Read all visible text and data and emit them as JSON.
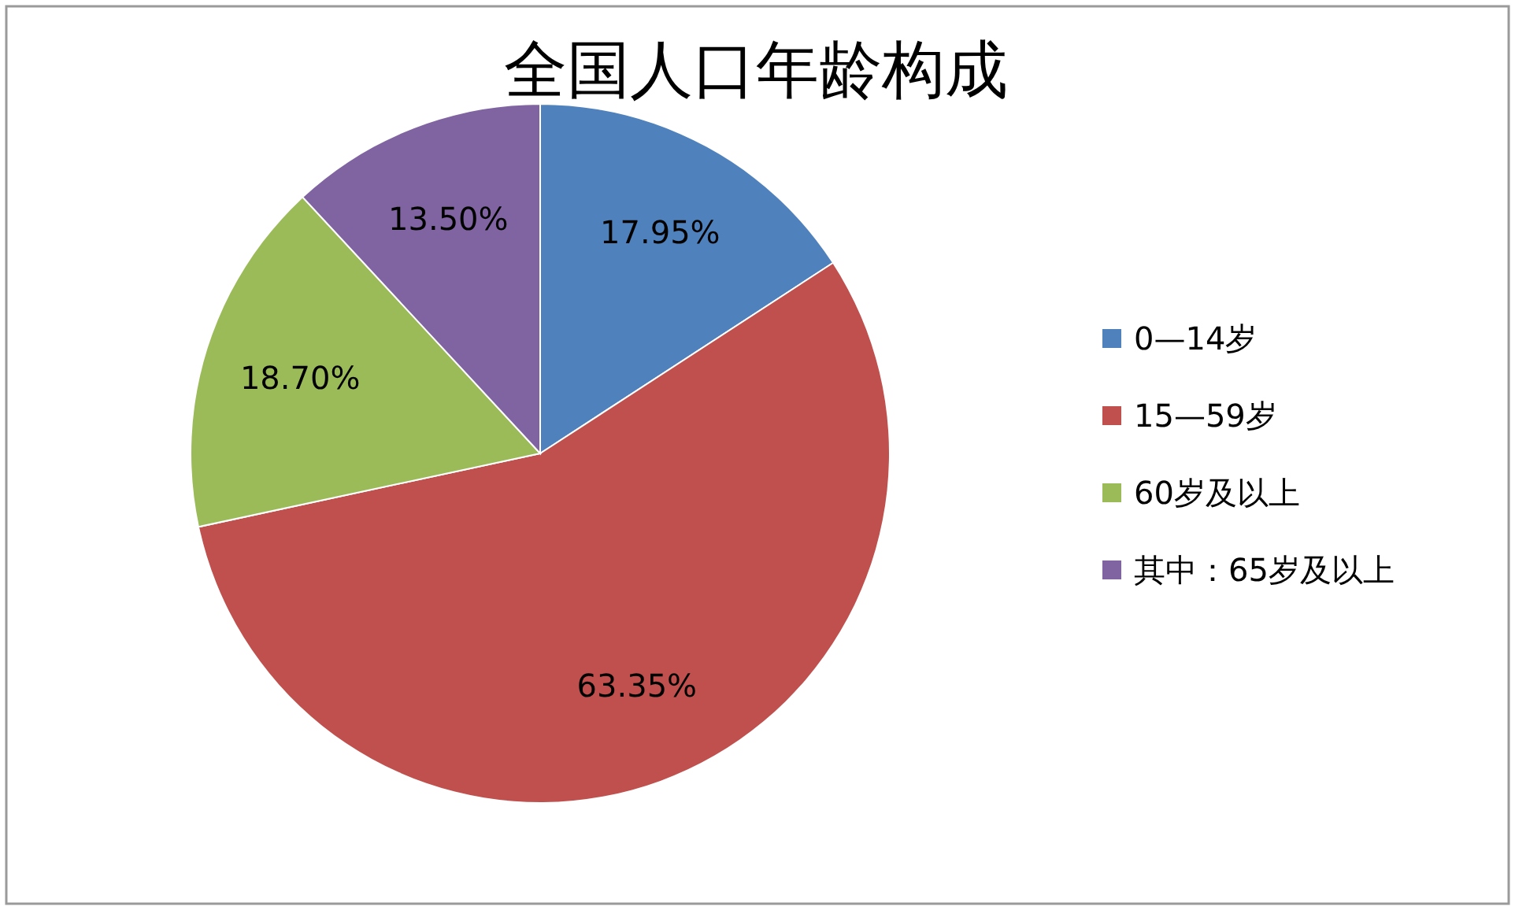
{
  "chart_data": {
    "type": "pie",
    "title": "全国人口年龄构成",
    "categories": [
      "0—14岁",
      "15—59岁",
      "60岁及以上",
      "其中：65岁及以上"
    ],
    "values": [
      17.95,
      63.35,
      18.7,
      13.5
    ],
    "colors": [
      "#4f81bd",
      "#c0504d",
      "#9bbb59",
      "#8064a2"
    ],
    "value_labels": [
      "17.95%",
      "63.35%",
      "18.70%",
      "13.50%"
    ],
    "legend": "right"
  }
}
